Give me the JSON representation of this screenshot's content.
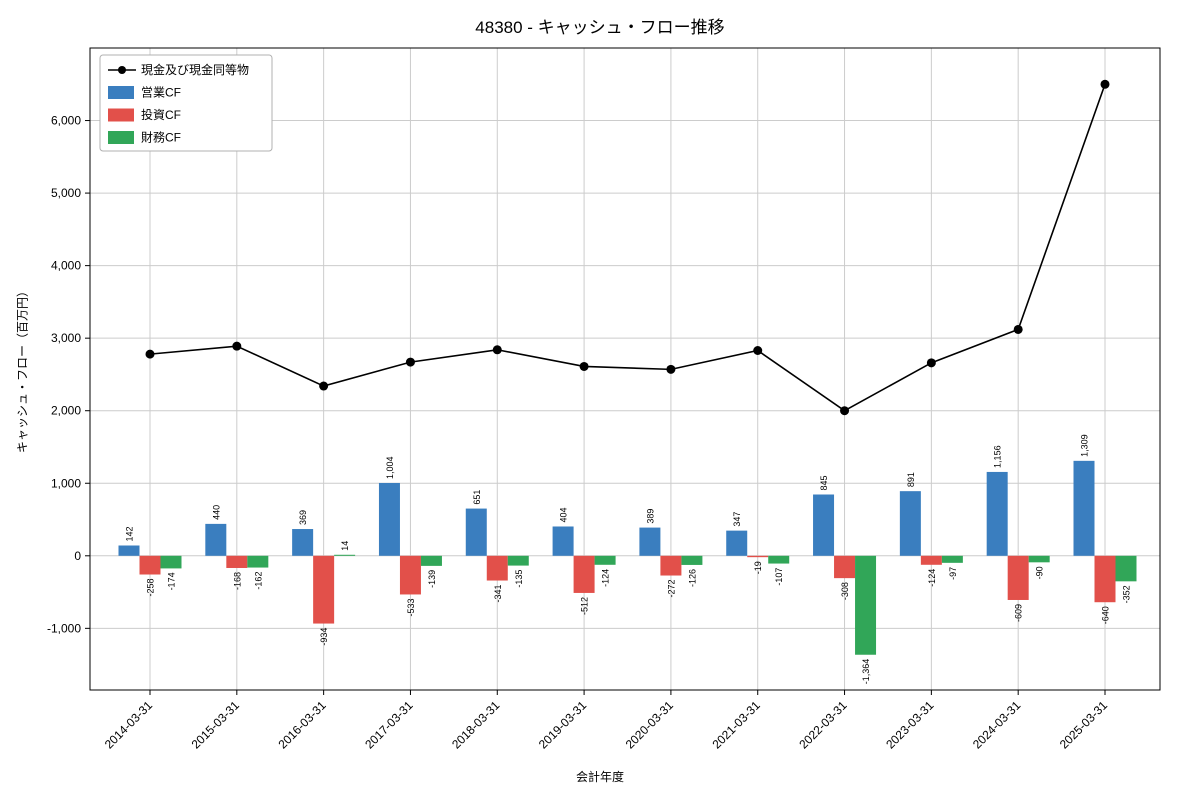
{
  "chart_data": {
    "type": "bar",
    "title": "48380 - キャッシュ・フロー推移",
    "xlabel": "会計年度",
    "ylabel": "キャッシュ・フロー（百万円）",
    "categories": [
      "2014-03-31",
      "2015-03-31",
      "2016-03-31",
      "2017-03-31",
      "2018-03-31",
      "2019-03-31",
      "2020-03-31",
      "2021-03-31",
      "2022-03-31",
      "2023-03-31",
      "2024-03-31",
      "2025-03-31"
    ],
    "series": [
      {
        "name": "営業CF",
        "type": "bar",
        "color": "#3a7ebf",
        "values": [
          142,
          440,
          369,
          1004,
          651,
          404,
          389,
          347,
          845,
          891,
          1156,
          1309
        ]
      },
      {
        "name": "投資CF",
        "type": "bar",
        "color": "#e2504a",
        "values": [
          -258,
          -168,
          -934,
          -533,
          -341,
          -512,
          -272,
          -19,
          -308,
          -124,
          -609,
          -640
        ]
      },
      {
        "name": "財務CF",
        "type": "bar",
        "color": "#31a658",
        "values": [
          -174,
          -162,
          14,
          -139,
          -135,
          -124,
          -126,
          -107,
          -1364,
          -97,
          -90,
          -352
        ]
      },
      {
        "name": "現金及び現金同等物",
        "type": "line",
        "color": "#000000",
        "values": [
          2780,
          2890,
          2340,
          2670,
          2840,
          2610,
          2570,
          2830,
          2000,
          2660,
          3120,
          6500
        ]
      }
    ],
    "legend_order": [
      "現金及び現金同等物",
      "営業CF",
      "投資CF",
      "財務CF"
    ],
    "legend_position": "top-left",
    "ylim": [
      -1850,
      7000
    ],
    "yticks": [
      -1000,
      0,
      1000,
      2000,
      3000,
      4000,
      5000,
      6000
    ],
    "grid": true,
    "grid_color": "#cccccc",
    "axis_color": "#000000",
    "background_color": "#ffffff"
  }
}
